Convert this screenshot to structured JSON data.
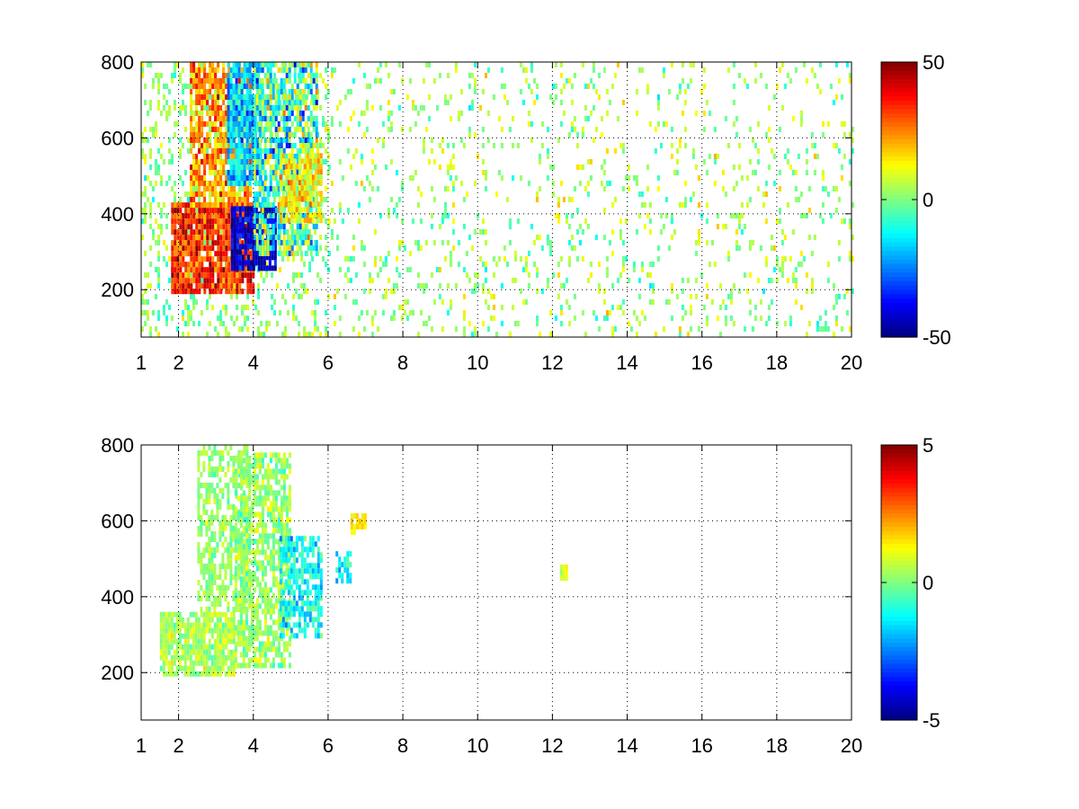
{
  "chart_data": [
    {
      "type": "heatmap",
      "xlim": [
        1,
        20
      ],
      "ylim": [
        75,
        800
      ],
      "x_ticks": [
        "1",
        "2",
        "4",
        "6",
        "8",
        "10",
        "12",
        "14",
        "16",
        "18",
        "20"
      ],
      "x_tick_values": [
        1,
        2,
        4,
        6,
        8,
        10,
        12,
        14,
        16,
        18,
        20
      ],
      "y_ticks": [
        "200",
        "400",
        "600",
        "800"
      ],
      "y_tick_values": [
        200,
        400,
        600,
        800
      ],
      "grid": true,
      "colormap": "jet",
      "colorbar": {
        "min": -50,
        "max": 50,
        "ticks": [
          "50",
          "0",
          "-50"
        ],
        "tick_values": [
          50,
          0,
          -50
        ]
      },
      "seed": 7,
      "regions": [
        {
          "x0": 1.0,
          "x1": 6.0,
          "y0": 75,
          "y1": 800,
          "mean": 2,
          "spread": 6,
          "density": 0.25
        },
        {
          "x0": 6.0,
          "x1": 20.0,
          "y0": 75,
          "y1": 800,
          "mean": 3,
          "spread": 7,
          "density": 0.12
        },
        {
          "x0": 1.8,
          "x1": 4.0,
          "y0": 190,
          "y1": 430,
          "mean": 34,
          "spread": 8,
          "density": 0.9
        },
        {
          "x0": 2.3,
          "x1": 3.9,
          "y0": 430,
          "y1": 800,
          "mean": 22,
          "spread": 9,
          "density": 0.75
        },
        {
          "x0": 3.4,
          "x1": 4.6,
          "y0": 250,
          "y1": 420,
          "mean": -42,
          "spread": 6,
          "density": 0.9
        },
        {
          "x0": 3.3,
          "x1": 4.2,
          "y0": 480,
          "y1": 800,
          "mean": -18,
          "spread": 8,
          "density": 0.85
        },
        {
          "x0": 4.0,
          "x1": 5.7,
          "y0": 300,
          "y1": 800,
          "mean": -6,
          "spread": 14,
          "density": 0.7
        },
        {
          "x0": 4.7,
          "x1": 5.8,
          "y0": 380,
          "y1": 560,
          "mean": 14,
          "spread": 7,
          "density": 0.8
        }
      ]
    },
    {
      "type": "heatmap",
      "xlim": [
        1,
        20
      ],
      "ylim": [
        75,
        800
      ],
      "x_ticks": [
        "1",
        "2",
        "4",
        "6",
        "8",
        "10",
        "12",
        "14",
        "16",
        "18",
        "20"
      ],
      "x_tick_values": [
        1,
        2,
        4,
        6,
        8,
        10,
        12,
        14,
        16,
        18,
        20
      ],
      "y_ticks": [
        "200",
        "400",
        "600",
        "800"
      ],
      "y_tick_values": [
        200,
        400,
        600,
        800
      ],
      "grid": true,
      "colormap": "jet",
      "colorbar": {
        "min": -5,
        "max": 5,
        "ticks": [
          "5",
          "0",
          "-5"
        ],
        "tick_values": [
          5,
          0,
          -5
        ]
      },
      "seed": 19,
      "regions": [
        {
          "x0": 1.5,
          "x1": 3.5,
          "y0": 190,
          "y1": 360,
          "mean": 0.4,
          "spread": 0.5,
          "density": 0.85
        },
        {
          "x0": 2.5,
          "x1": 3.9,
          "y0": 360,
          "y1": 800,
          "mean": 0.2,
          "spread": 0.4,
          "density": 0.6
        },
        {
          "x0": 3.5,
          "x1": 5.0,
          "y0": 220,
          "y1": 780,
          "mean": 0.3,
          "spread": 0.5,
          "density": 0.7
        },
        {
          "x0": 4.7,
          "x1": 5.8,
          "y0": 300,
          "y1": 560,
          "mean": -1.2,
          "spread": 0.6,
          "density": 0.7
        },
        {
          "x0": 6.6,
          "x1": 7.0,
          "y0": 570,
          "y1": 620,
          "mean": 1.5,
          "spread": 0.4,
          "density": 0.8
        },
        {
          "x0": 6.2,
          "x1": 6.6,
          "y0": 440,
          "y1": 520,
          "mean": -1.3,
          "spread": 0.4,
          "density": 0.6
        },
        {
          "x0": 12.2,
          "x1": 12.4,
          "y0": 450,
          "y1": 485,
          "mean": 0.8,
          "spread": 0.3,
          "density": 0.9
        }
      ]
    }
  ]
}
